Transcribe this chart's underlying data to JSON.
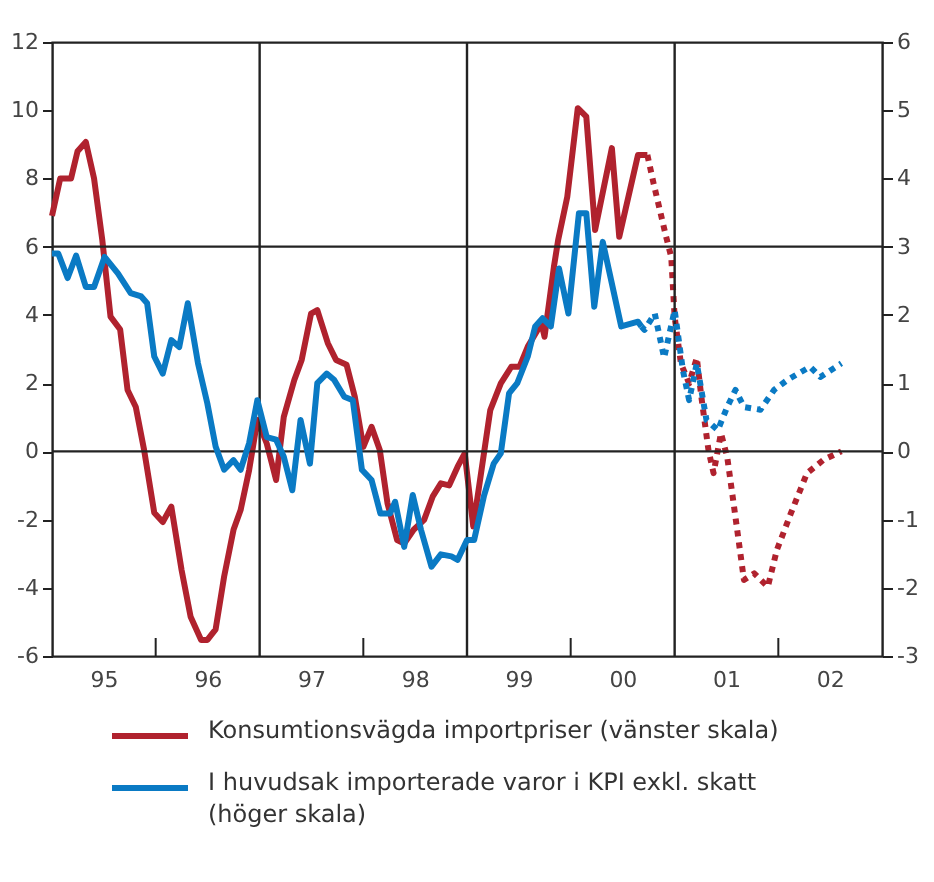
{
  "chart_data": {
    "type": "line",
    "xlim": [
      "1995-01-01",
      "2003-01-01"
    ],
    "xticks": [
      {
        "value": "1995-07-01",
        "label": "95"
      },
      {
        "value": "1996-01-01",
        "label": null
      },
      {
        "value": "1996-07-01",
        "label": "96"
      },
      {
        "value": "1997-07-01",
        "label": "97"
      },
      {
        "value": "1998-01-01",
        "label": null
      },
      {
        "value": "1998-07-01",
        "label": "98"
      },
      {
        "value": "1999-07-01",
        "label": "99"
      },
      {
        "value": "2000-01-01",
        "label": null
      },
      {
        "value": "2000-07-01",
        "label": "00"
      },
      {
        "value": "2001-07-01",
        "label": "01"
      },
      {
        "value": "2002-01-01",
        "label": null
      },
      {
        "value": "2002-07-01",
        "label": "02"
      }
    ],
    "ylim": [
      -6,
      12
    ],
    "yticks": [
      -6,
      -4,
      -2,
      0,
      2,
      4,
      6,
      8,
      10,
      12
    ],
    "y2lim": [
      -3,
      6
    ],
    "y2ticks": [
      -3,
      -2,
      -1,
      0,
      1,
      2,
      3,
      4,
      5,
      6
    ],
    "grid": false,
    "legend": "bottom",
    "marker": "none",
    "ref_lines": [
      {
        "axis": "x",
        "value": "1997-01-01",
        "color": "#222222"
      },
      {
        "axis": "x",
        "value": "1999-01-01",
        "color": "#222222"
      },
      {
        "axis": "x",
        "value": "2001-01-01",
        "color": "#222222"
      },
      {
        "axis": "y",
        "value": 6,
        "color": "#222222"
      },
      {
        "axis": "y",
        "value": 0,
        "color": "#222222"
      }
    ],
    "series": [
      {
        "name": "Konsumtionsvägda importpriser (vänster skala)",
        "color": "#b0222e",
        "axis": "y",
        "line_style": "solid",
        "x": [
          "1995-01-01",
          "1995-01-30",
          "1995-03-09",
          "1995-04-01",
          "1995-04-30",
          "1995-05-29",
          "1995-06-27",
          "1995-07-26",
          "1995-08-29",
          "1995-09-24",
          "1995-10-23",
          "1995-11-21",
          "1995-12-27",
          "1996-01-26",
          "1996-02-25",
          "1996-04-01",
          "1996-05-03",
          "1996-06-09",
          "1996-07-01",
          "1996-07-30",
          "1996-08-29",
          "1996-10-01",
          "1996-10-26",
          "1996-11-25",
          "1996-12-24",
          "1997-01-26",
          "1997-02-28",
          "1997-03-27",
          "1997-05-03",
          "1997-05-29",
          "1997-07-01",
          "1997-07-23",
          "1997-08-29",
          "1997-09-27",
          "1997-11-03",
          "1997-12-02",
          "1998-01-01",
          "1998-01-30",
          "1998-02-28",
          "1998-03-27",
          "1998-04-30",
          "1998-05-25",
          "1998-06-27",
          "1998-08-03",
          "1998-09-02",
          "1998-10-01",
          "1998-10-30",
          "1998-11-29",
          "1998-12-24",
          "1999-01-23",
          "1999-03-24",
          "1999-04-30",
          "1999-06-06",
          "1999-07-05",
          "1999-08-03",
          "1999-09-20",
          "1999-10-01",
          "1999-11-03",
          "1999-11-18",
          "1999-12-20",
          "2000-01-26",
          "2000-02-25",
          "2000-03-27",
          "2000-05-25",
          "2000-06-20",
          "2000-08-25",
          "2000-09-27"
        ],
        "values": [
          6.9,
          8.0,
          8.0,
          8.8,
          9.07,
          8.0,
          6.2,
          3.95,
          3.57,
          1.8,
          1.3,
          0.05,
          -1.8,
          -2.07,
          -1.62,
          -3.47,
          -4.85,
          -5.53,
          -5.53,
          -5.22,
          -3.67,
          -2.3,
          -1.72,
          -0.55,
          0.92,
          0.23,
          -0.84,
          1.01,
          2.09,
          2.68,
          4.04,
          4.14,
          3.17,
          2.68,
          2.54,
          1.6,
          0.13,
          0.72,
          0.04,
          -1.52,
          -2.6,
          -2.7,
          -2.3,
          -2.01,
          -1.33,
          -0.94,
          -1.0,
          -0.45,
          -0.06,
          -2.2,
          1.21,
          1.99,
          2.48,
          2.48,
          3.07,
          3.75,
          3.36,
          5.41,
          6.2,
          7.46,
          10.06,
          9.81,
          6.49,
          8.89,
          6.29,
          8.69,
          8.69
        ]
      },
      {
        "color": "#b0222e",
        "axis": "y",
        "line_style": "dotted",
        "x": [
          "2000-09-27",
          "2000-10-19",
          "2000-12-02",
          "2000-12-20",
          "2001-01-01",
          "2001-01-23",
          "2001-02-21",
          "2001-03-20",
          "2001-04-05",
          "2001-04-30",
          "2001-05-18",
          "2001-06-13",
          "2001-07-05",
          "2001-08-03",
          "2001-09-02",
          "2001-10-08",
          "2001-11-25",
          "2001-12-27",
          "2002-02-14",
          "2002-04-12",
          "2002-06-09",
          "2002-08-11"
        ],
        "values": [
          8.69,
          7.85,
          6.29,
          5.7,
          3.94,
          2.58,
          1.99,
          2.74,
          1.6,
          0.04,
          -0.64,
          0.53,
          -0.16,
          -1.92,
          -3.77,
          -3.58,
          -3.97,
          -2.89,
          -1.82,
          -0.64,
          -0.25,
          0.0
        ]
      },
      {
        "name": "I huvudsak importerade varor i KPI exkl. skatt (höger skala)",
        "color": "#0a7ac4",
        "axis": "y2",
        "line_style": "solid",
        "x": [
          "1995-01-01",
          "1995-01-23",
          "1995-02-25",
          "1995-03-27",
          "1995-04-30",
          "1995-05-29",
          "1995-07-05",
          "1995-08-21",
          "1995-10-05",
          "1995-11-11",
          "1995-12-02",
          "1995-12-27",
          "1996-01-26",
          "1996-02-25",
          "1996-03-24",
          "1996-04-23",
          "1996-05-29",
          "1996-07-01",
          "1996-07-30",
          "1996-08-29",
          "1996-10-01",
          "1996-10-26",
          "1996-11-25",
          "1996-12-24",
          "1997-01-26",
          "1997-02-28",
          "1997-03-27",
          "1997-04-26",
          "1997-05-25",
          "1997-06-27",
          "1997-07-23",
          "1997-08-25",
          "1997-09-20",
          "1997-10-26",
          "1997-11-25",
          "1997-12-27",
          "1998-01-30",
          "1998-03-02",
          "1998-04-05",
          "1998-04-23",
          "1998-05-25",
          "1998-06-24",
          "1998-07-23",
          "1998-08-29",
          "1998-10-01",
          "1998-11-07",
          "1998-11-29",
          "1999-01-01",
          "1999-01-26",
          "1999-03-02",
          "1999-04-05",
          "1999-04-30",
          "1999-05-29",
          "1999-06-27",
          "1999-08-03",
          "1999-08-29",
          "1999-09-24",
          "1999-10-23",
          "1999-11-21",
          "1999-12-24",
          "2000-01-30",
          "2000-02-25",
          "2000-03-24",
          "2000-04-23",
          "2000-06-27",
          "2000-08-25",
          "2000-09-06"
        ],
        "values": [
          2.9,
          2.9,
          2.54,
          2.87,
          2.41,
          2.41,
          2.85,
          2.61,
          2.32,
          2.27,
          2.17,
          1.39,
          1.14,
          1.63,
          1.53,
          2.17,
          1.29,
          0.7,
          0.07,
          -0.27,
          -0.13,
          -0.27,
          0.12,
          0.75,
          0.21,
          0.17,
          -0.08,
          -0.57,
          0.46,
          -0.18,
          1.0,
          1.14,
          1.05,
          0.8,
          0.75,
          -0.27,
          -0.42,
          -0.91,
          -0.91,
          -0.74,
          -1.4,
          -0.64,
          -1.15,
          -1.69,
          -1.51,
          -1.54,
          -1.59,
          -1.3,
          -1.3,
          -0.65,
          -0.18,
          -0.03,
          0.85,
          1.0,
          1.39,
          1.83,
          1.95,
          1.83,
          2.68,
          2.02,
          3.49,
          3.49,
          2.12,
          3.07,
          1.83,
          1.9,
          1.83
        ]
      },
      {
        "color": "#0a7ac4",
        "axis": "y2",
        "line_style": "dotted",
        "x": [
          "2000-09-06",
          "2000-09-17",
          "2000-10-23",
          "2000-11-25",
          "2001-01-01",
          "2001-01-30",
          "2001-02-21",
          "2001-03-20",
          "2001-04-23",
          "2001-06-02",
          "2001-07-05",
          "2001-08-03",
          "2001-09-02",
          "2001-10-30",
          "2001-12-17",
          "2002-02-03",
          "2002-04-23",
          "2002-05-29",
          "2002-08-11"
        ],
        "values": [
          1.83,
          1.78,
          2.02,
          1.37,
          2.07,
          1.19,
          0.75,
          1.29,
          0.46,
          0.31,
          0.65,
          0.9,
          0.65,
          0.61,
          0.9,
          1.05,
          1.24,
          1.09,
          1.29
        ]
      }
    ]
  }
}
